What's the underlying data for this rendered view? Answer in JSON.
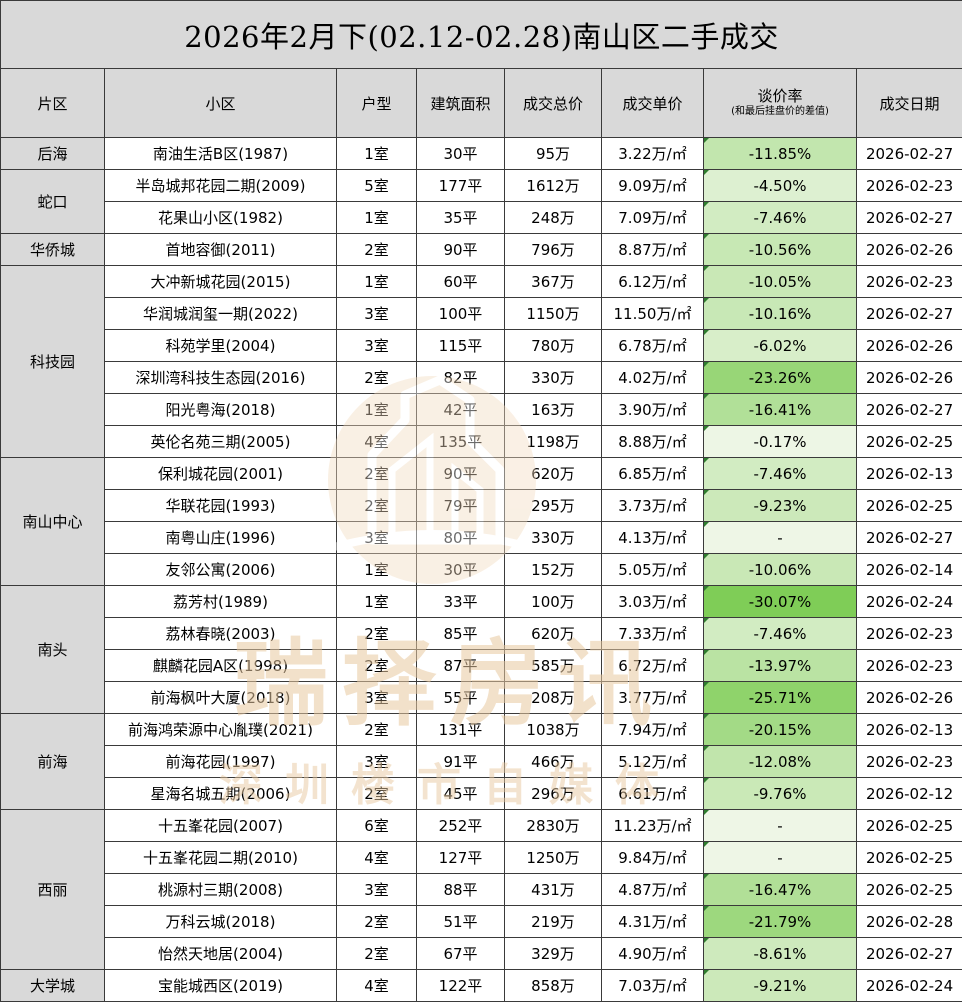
{
  "title": "2026年2月下(02.12-02.28)南山区二手成交",
  "headers": {
    "district": "片区",
    "community": "小区",
    "layout": "户型",
    "area": "建筑面积",
    "total_price": "成交总价",
    "unit_price": "成交单价",
    "rate_main": "谈价率",
    "rate_sub": "(和最后挂盘价的差值)",
    "date": "成交日期"
  },
  "groups": [
    {
      "district": "后海",
      "rows": [
        {
          "community": "南油生活B区(1987)",
          "layout": "1室",
          "area": "30平",
          "total": "95万",
          "unit": "3.22万/㎡",
          "rate": "-11.85%",
          "rate_value": -11.85,
          "date": "2026-02-27"
        }
      ]
    },
    {
      "district": "蛇口",
      "rows": [
        {
          "community": "半岛城邦花园二期(2009)",
          "layout": "5室",
          "area": "177平",
          "total": "1612万",
          "unit": "9.09万/㎡",
          "rate": "-4.50%",
          "rate_value": -4.5,
          "date": "2026-02-23"
        },
        {
          "community": "花果山小区(1982)",
          "layout": "1室",
          "area": "35平",
          "total": "248万",
          "unit": "7.09万/㎡",
          "rate": "-7.46%",
          "rate_value": -7.46,
          "date": "2026-02-27"
        }
      ]
    },
    {
      "district": "华侨城",
      "rows": [
        {
          "community": "首地容御(2011)",
          "layout": "2室",
          "area": "90平",
          "total": "796万",
          "unit": "8.87万/㎡",
          "rate": "-10.56%",
          "rate_value": -10.56,
          "date": "2026-02-26"
        }
      ]
    },
    {
      "district": "科技园",
      "rows": [
        {
          "community": "大冲新城花园(2015)",
          "layout": "1室",
          "area": "60平",
          "total": "367万",
          "unit": "6.12万/㎡",
          "rate": "-10.05%",
          "rate_value": -10.05,
          "date": "2026-02-23"
        },
        {
          "community": "华润城润玺一期(2022)",
          "layout": "3室",
          "area": "100平",
          "total": "1150万",
          "unit": "11.50万/㎡",
          "rate": "-10.16%",
          "rate_value": -10.16,
          "date": "2026-02-27"
        },
        {
          "community": "科苑学里(2004)",
          "layout": "3室",
          "area": "115平",
          "total": "780万",
          "unit": "6.78万/㎡",
          "rate": "-6.02%",
          "rate_value": -6.02,
          "date": "2026-02-26"
        },
        {
          "community": "深圳湾科技生态园(2016)",
          "layout": "2室",
          "area": "82平",
          "total": "330万",
          "unit": "4.02万/㎡",
          "rate": "-23.26%",
          "rate_value": -23.26,
          "date": "2026-02-26"
        },
        {
          "community": "阳光粤海(2018)",
          "layout": "1室",
          "area": "42平",
          "total": "163万",
          "unit": "3.90万/㎡",
          "rate": "-16.41%",
          "rate_value": -16.41,
          "date": "2026-02-27"
        },
        {
          "community": "英伦名苑三期(2005)",
          "layout": "4室",
          "area": "135平",
          "total": "1198万",
          "unit": "8.88万/㎡",
          "rate": "-0.17%",
          "rate_value": -0.17,
          "date": "2026-02-25"
        }
      ]
    },
    {
      "district": "南山中心",
      "rows": [
        {
          "community": "保利城花园(2001)",
          "layout": "2室",
          "area": "90平",
          "total": "620万",
          "unit": "6.85万/㎡",
          "rate": "-7.46%",
          "rate_value": -7.46,
          "date": "2026-02-13"
        },
        {
          "community": "华联花园(1993)",
          "layout": "2室",
          "area": "79平",
          "total": "295万",
          "unit": "3.73万/㎡",
          "rate": "-9.23%",
          "rate_value": -9.23,
          "date": "2026-02-25"
        },
        {
          "community": "南粤山庄(1996)",
          "layout": "3室",
          "area": "80平",
          "total": "330万",
          "unit": "4.13万/㎡",
          "rate": "-",
          "rate_value": null,
          "date": "2026-02-27"
        },
        {
          "community": "友邻公寓(2006)",
          "layout": "1室",
          "area": "30平",
          "total": "152万",
          "unit": "5.05万/㎡",
          "rate": "-10.06%",
          "rate_value": -10.06,
          "date": "2026-02-14"
        }
      ]
    },
    {
      "district": "南头",
      "rows": [
        {
          "community": "荔芳村(1989)",
          "layout": "1室",
          "area": "33平",
          "total": "100万",
          "unit": "3.03万/㎡",
          "rate": "-30.07%",
          "rate_value": -30.07,
          "date": "2026-02-24"
        },
        {
          "community": "荔林春晓(2003)",
          "layout": "2室",
          "area": "85平",
          "total": "620万",
          "unit": "7.33万/㎡",
          "rate": "-7.46%",
          "rate_value": -7.46,
          "date": "2026-02-23"
        },
        {
          "community": "麒麟花园A区(1998)",
          "layout": "2室",
          "area": "87平",
          "total": "585万",
          "unit": "6.72万/㎡",
          "rate": "-13.97%",
          "rate_value": -13.97,
          "date": "2026-02-23"
        },
        {
          "community": "前海枫叶大厦(2018)",
          "layout": "3室",
          "area": "55平",
          "total": "208万",
          "unit": "3.77万/㎡",
          "rate": "-25.71%",
          "rate_value": -25.71,
          "date": "2026-02-26"
        }
      ]
    },
    {
      "district": "前海",
      "rows": [
        {
          "community": "前海鸿荣源中心胤璞(2021)",
          "layout": "2室",
          "area": "131平",
          "total": "1038万",
          "unit": "7.94万/㎡",
          "rate": "-20.15%",
          "rate_value": -20.15,
          "date": "2026-02-13"
        },
        {
          "community": "前海花园(1997)",
          "layout": "3室",
          "area": "91平",
          "total": "466万",
          "unit": "5.12万/㎡",
          "rate": "-12.08%",
          "rate_value": -12.08,
          "date": "2026-02-23"
        },
        {
          "community": "星海名城五期(2006)",
          "layout": "2室",
          "area": "45平",
          "total": "296万",
          "unit": "6.61万/㎡",
          "rate": "-9.76%",
          "rate_value": -9.76,
          "date": "2026-02-12"
        }
      ]
    },
    {
      "district": "西丽",
      "rows": [
        {
          "community": "十五峯花园(2007)",
          "layout": "6室",
          "area": "252平",
          "total": "2830万",
          "unit": "11.23万/㎡",
          "rate": "-",
          "rate_value": null,
          "date": "2026-02-25"
        },
        {
          "community": "十五峯花园二期(2010)",
          "layout": "4室",
          "area": "127平",
          "total": "1250万",
          "unit": "9.84万/㎡",
          "rate": "-",
          "rate_value": null,
          "date": "2026-02-25"
        },
        {
          "community": "桃源村三期(2008)",
          "layout": "3室",
          "area": "88平",
          "total": "431万",
          "unit": "4.87万/㎡",
          "rate": "-16.47%",
          "rate_value": -16.47,
          "date": "2026-02-25"
        },
        {
          "community": "万科云城(2018)",
          "layout": "2室",
          "area": "51平",
          "total": "219万",
          "unit": "4.31万/㎡",
          "rate": "-21.79%",
          "rate_value": -21.79,
          "date": "2026-02-28"
        },
        {
          "community": "怡然天地居(2004)",
          "layout": "2室",
          "area": "67平",
          "total": "329万",
          "unit": "4.90万/㎡",
          "rate": "-8.61%",
          "rate_value": -8.61,
          "date": "2026-02-27"
        }
      ]
    },
    {
      "district": "大学城",
      "rows": [
        {
          "community": "宝能城西区(2019)",
          "layout": "4室",
          "area": "122平",
          "total": "858万",
          "unit": "7.03万/㎡",
          "rate": "-9.21%",
          "rate_value": -9.21,
          "date": "2026-02-24"
        }
      ]
    }
  ],
  "watermark": {
    "text_main": "瑞择房讯",
    "text_sub": "深圳楼市自媒体",
    "color": "#e8c9a0"
  },
  "colors": {
    "header_bg": "#d9d9d9",
    "rate_pale": "#eef6e6",
    "rate_strong": "#7fcd57",
    "corner_mark": "#2f7d2f"
  }
}
